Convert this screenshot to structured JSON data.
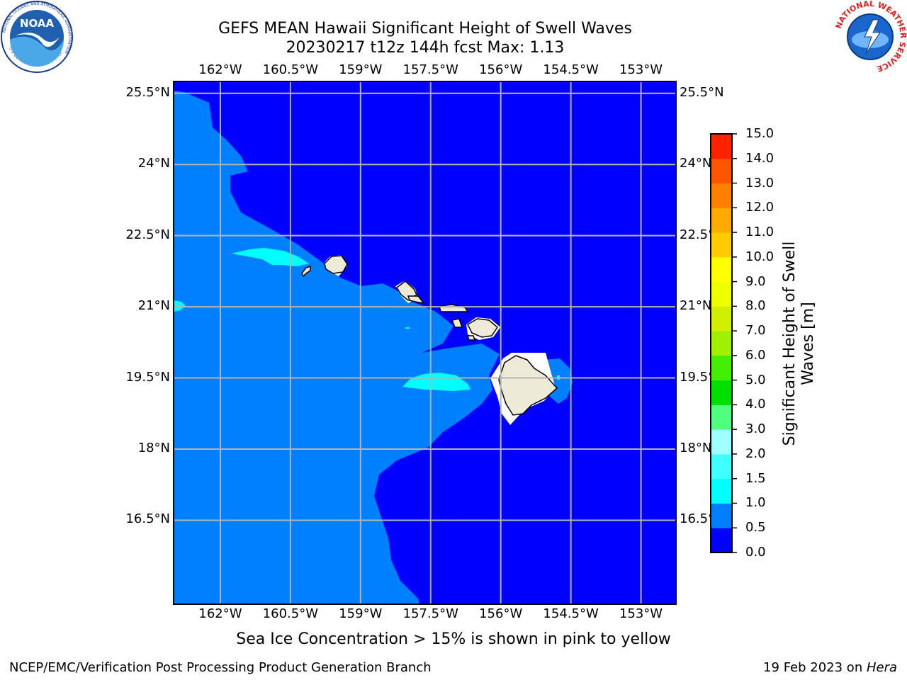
{
  "header": {
    "title_line1": "GEFS MEAN Hawaii Significant Height of Swell Waves",
    "title_line2": "20230217 t12z 144h fcst   Max: 1.13"
  },
  "map": {
    "lon_ticks": [
      "162°W",
      "160.5°W",
      "159°W",
      "157.5°W",
      "156°W",
      "154.5°W",
      "153°W"
    ],
    "lon_values": [
      -162,
      -160.5,
      -159,
      -157.5,
      -156,
      -154.5,
      -153
    ],
    "lat_ticks": [
      "25.5°N",
      "24°N",
      "22.5°N",
      "21°N",
      "19.5°N",
      "18°N",
      "16.5°N"
    ],
    "right_lat_ticks": [
      "25.5°N",
      "24°N",
      "22.5°N",
      "21°N",
      "19.5°N",
      "18°N",
      "16.5°N"
    ],
    "lat_values": [
      25.5,
      24,
      22.5,
      21,
      19.5,
      18,
      16.5
    ],
    "lon_range": [
      -163.0,
      -152.25
    ],
    "lat_range": [
      14.73,
      25.75
    ],
    "grid": true,
    "colors": {
      "land": "#eeead8",
      "coast": "#000000",
      "grid": "#b4b4b4"
    },
    "islands": [
      "Niihau",
      "Kauai",
      "Oahu",
      "Molokai",
      "Lanai",
      "Maui",
      "Kahoolawe",
      "Hawaii"
    ]
  },
  "colorbar": {
    "label": "Significant Height of Swell Waves [m]",
    "label_line1": "Significant Height of Swell",
    "label_line2": "Waves [m]",
    "levels": [
      "0.0",
      "0.5",
      "1.0",
      "1.5",
      "2.0",
      "3.0",
      "4.0",
      "5.0",
      "6.0",
      "7.0",
      "8.0",
      "9.0",
      "10.0",
      "11.0",
      "12.0",
      "13.0",
      "14.0",
      "15.0"
    ],
    "colors": [
      "#0000ff",
      "#0080ff",
      "#00ffff",
      "#40ffff",
      "#a0ffff",
      "#50ff80",
      "#00e000",
      "#40f000",
      "#a0f000",
      "#d0f000",
      "#f0ff00",
      "#ffff00",
      "#ffcc00",
      "#ffaa00",
      "#ff8000",
      "#ff5500",
      "#ff2000"
    ]
  },
  "note": "Sea Ice Concentration > 15% is shown in pink to yellow",
  "footer": {
    "left": "NCEP/EMC/Verification Post Processing Product Generation Branch",
    "right_prefix": "19 Feb 2023 on ",
    "right_host": "Hera"
  },
  "logos": {
    "noaa_text": "NOAA",
    "noaa_ring_text": "NATIONAL OCEANIC AND ATMOSPHERIC ADMINISTRATION",
    "noaa_ring_bottom": "U.S. DEPARTMENT OF COMMERCE",
    "nws_ring_text": "NATIONAL WEATHER SERVICE"
  }
}
